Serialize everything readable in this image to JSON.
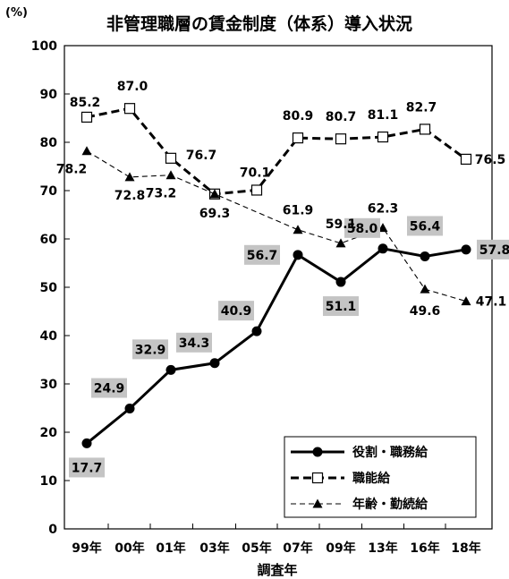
{
  "chart_data": {
    "type": "line",
    "title": "非管理職層の賃金制度（体系）導入状況",
    "y_unit_label": "(%)",
    "xlabel": "調査年",
    "ylabel": "",
    "ylim": [
      0,
      100
    ],
    "y_ticks": [
      0,
      10,
      20,
      30,
      40,
      50,
      60,
      70,
      80,
      90,
      100
    ],
    "grid": false,
    "legend_position": "bottom-right",
    "categories": [
      "99年",
      "00年",
      "01年",
      "03年",
      "05年",
      "07年",
      "09年",
      "13年",
      "16年",
      "18年"
    ],
    "series": [
      {
        "name": "役割・職務給",
        "style": "solid-thick",
        "marker": "filled-circle",
        "color": "#000000",
        "labels_boxed": true,
        "values": [
          17.7,
          24.9,
          32.9,
          34.3,
          40.9,
          56.7,
          51.1,
          58.0,
          56.4,
          57.8
        ],
        "value_labels": [
          "17.7",
          "24.9",
          "32.9",
          "34.3",
          "40.9",
          "56.7",
          "51.1",
          "58.0",
          "56.4",
          "57.8"
        ]
      },
      {
        "name": "職能給",
        "style": "dashed-thick",
        "marker": "open-square",
        "color": "#000000",
        "labels_boxed": false,
        "values": [
          85.2,
          87.0,
          76.7,
          69.3,
          70.1,
          80.9,
          80.7,
          81.1,
          82.7,
          76.5
        ],
        "value_labels": [
          "85.2",
          "87.0",
          "76.7",
          "69.3",
          "70.1",
          "80.9",
          "80.7",
          "81.1",
          "82.7",
          "76.5"
        ]
      },
      {
        "name": "年齢・勤続給",
        "style": "dashed-thin",
        "marker": "filled-triangle",
        "color": "#000000",
        "labels_boxed": false,
        "values": [
          78.2,
          72.8,
          73.2,
          69.3,
          null,
          61.9,
          59.1,
          62.3,
          49.6,
          47.1
        ],
        "value_labels": [
          "78.2",
          "72.8",
          "73.2",
          "",
          "",
          "61.9",
          "59.1",
          "62.3",
          "49.6",
          "47.1"
        ]
      }
    ]
  }
}
